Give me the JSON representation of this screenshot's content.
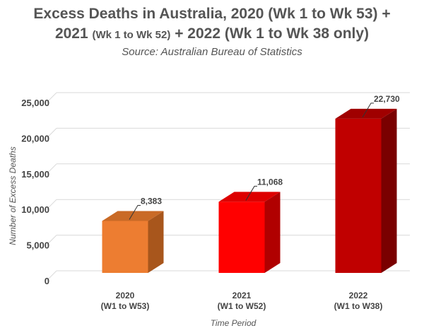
{
  "title": {
    "line1": "Excess Deaths in Australia, 2020 (Wk 1 to Wk 53) +",
    "line2_a": "2021 ",
    "line2_b": "(Wk 1 to Wk 52)",
    "line2_c": " + 2022 (Wk 1 to Wk 38 only)",
    "subtitle": "Source: Australian Bureau of Statistics"
  },
  "chart_data": {
    "type": "bar",
    "title": "Excess Deaths in Australia, 2020 (Wk 1 to Wk 53) + 2021 (Wk 1 to Wk 52) + 2022 (Wk 1 to Wk 38 only)",
    "subtitle": "Source: Australian Bureau of Statistics",
    "categories": [
      [
        "2020",
        "(W1 to W53)"
      ],
      [
        "2021",
        "(W1 to W52)"
      ],
      [
        "2022",
        "(W1 to W38)"
      ]
    ],
    "values": [
      8383,
      11068,
      22730
    ],
    "data_labels": [
      "8,383",
      "11,068",
      "22,730"
    ],
    "colors": [
      {
        "front": "#ed7d31",
        "side": "#a8561c",
        "top": "#c96a26"
      },
      {
        "front": "#ff0000",
        "side": "#b00000",
        "top": "#dd0000"
      },
      {
        "front": "#c00000",
        "side": "#7a0000",
        "top": "#a00000"
      }
    ],
    "xlabel": "Time Period",
    "ylabel": "Number of Excess Deaths",
    "yticks": [
      "0",
      "5,000",
      "10,000",
      "15,000",
      "20,000",
      "25,000"
    ],
    "ylim": [
      0,
      25000
    ],
    "grid": true,
    "legend": "none"
  }
}
